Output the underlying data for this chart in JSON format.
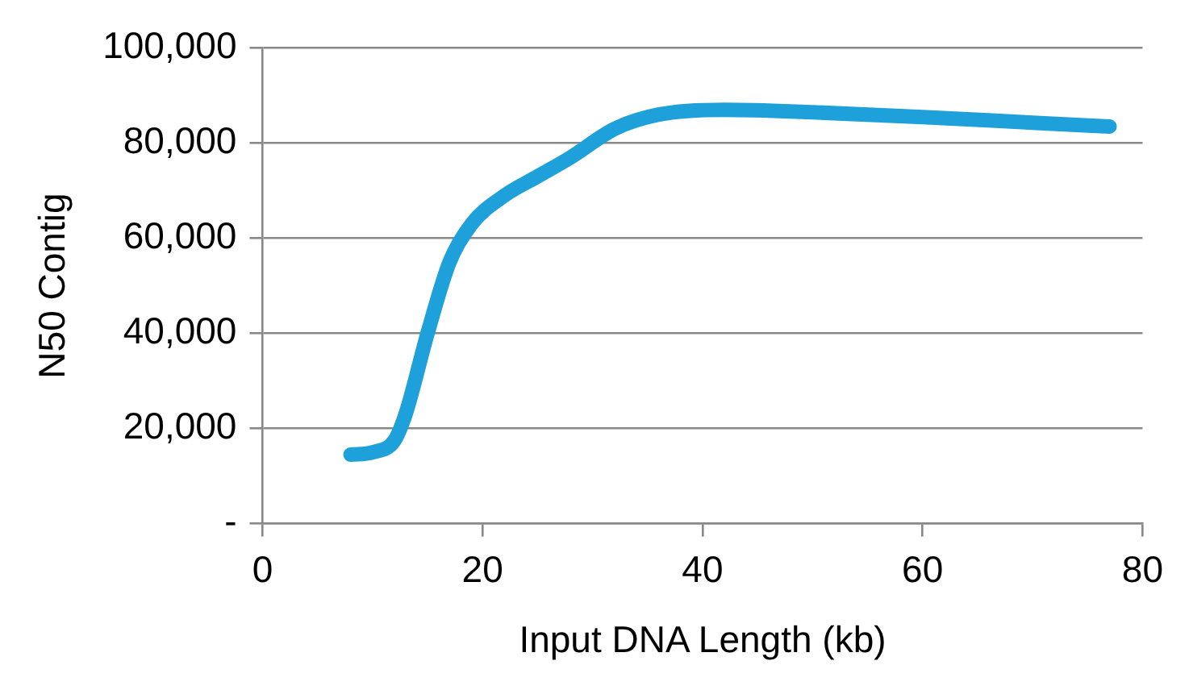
{
  "chart_data": {
    "type": "line",
    "xlabel": "Input DNA Length (kb)",
    "ylabel": "N50 Contig",
    "series": [
      {
        "color": "#1ea0db",
        "x": [
          8,
          10,
          12,
          13,
          15,
          17,
          19,
          22,
          25,
          28,
          32,
          36,
          42,
          50,
          60,
          70,
          77
        ],
        "values": [
          14500,
          15000,
          17500,
          23000,
          40000,
          55000,
          63000,
          69000,
          73000,
          77000,
          83000,
          86000,
          87000,
          86500,
          85500,
          84300,
          83500
        ]
      }
    ],
    "xlim": [
      0,
      80
    ],
    "xticks": [
      0,
      20,
      40,
      60,
      80
    ],
    "ylim": [
      0,
      100000
    ],
    "yticks": [
      {
        "value": 0,
        "label": "-"
      },
      {
        "value": 20000,
        "label": "20,000"
      },
      {
        "value": 40000,
        "label": "40,000"
      },
      {
        "value": 60000,
        "label": "60,000"
      },
      {
        "value": 80000,
        "label": "80,000"
      },
      {
        "value": 100000,
        "label": "100,000"
      }
    ],
    "grid": "y",
    "legend": false,
    "marker": "none",
    "line_style": "solid"
  }
}
